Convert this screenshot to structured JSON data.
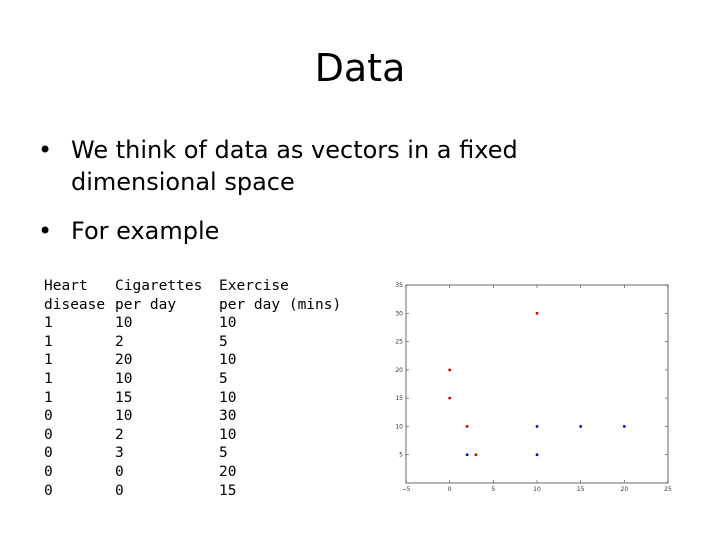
{
  "slide": {
    "title": "Data",
    "bullets": [
      "We think of data as vectors in a fixed dimensional space",
      "For example"
    ],
    "bullet_glyph": "•"
  },
  "table": {
    "headers": [
      [
        "Heart",
        "disease"
      ],
      [
        "Cigarettes",
        "per day"
      ],
      [
        "Exercise",
        "per day (mins)"
      ]
    ],
    "rows": [
      [
        "1",
        "10",
        "10"
      ],
      [
        "1",
        "2",
        "5"
      ],
      [
        "1",
        "20",
        "10"
      ],
      [
        "1",
        "10",
        "5"
      ],
      [
        "1",
        "15",
        "10"
      ],
      [
        "0",
        "10",
        "30"
      ],
      [
        "0",
        "2",
        "10"
      ],
      [
        "0",
        "3",
        "5"
      ],
      [
        "0",
        "0",
        "20"
      ],
      [
        "0",
        "0",
        "15"
      ]
    ]
  },
  "chart_data": {
    "type": "scatter",
    "title": "",
    "xlabel": "",
    "ylabel": "",
    "xlim": [
      -5,
      25
    ],
    "ylim": [
      0,
      35
    ],
    "x_ticks": [
      -5,
      0,
      5,
      10,
      15,
      20,
      25
    ],
    "y_ticks": [
      5,
      10,
      15,
      20,
      25,
      30,
      35
    ],
    "grid": false,
    "series": [
      {
        "color": "#cc0000",
        "points": [
          [
            10,
            30
          ],
          [
            0,
            20
          ],
          [
            0,
            15
          ],
          [
            2,
            10
          ],
          [
            3,
            5
          ]
        ]
      },
      {
        "color": "#0000cc",
        "points": [
          [
            10,
            10
          ],
          [
            15,
            10
          ],
          [
            20,
            10
          ],
          [
            2,
            5
          ],
          [
            10,
            5
          ]
        ]
      }
    ]
  }
}
